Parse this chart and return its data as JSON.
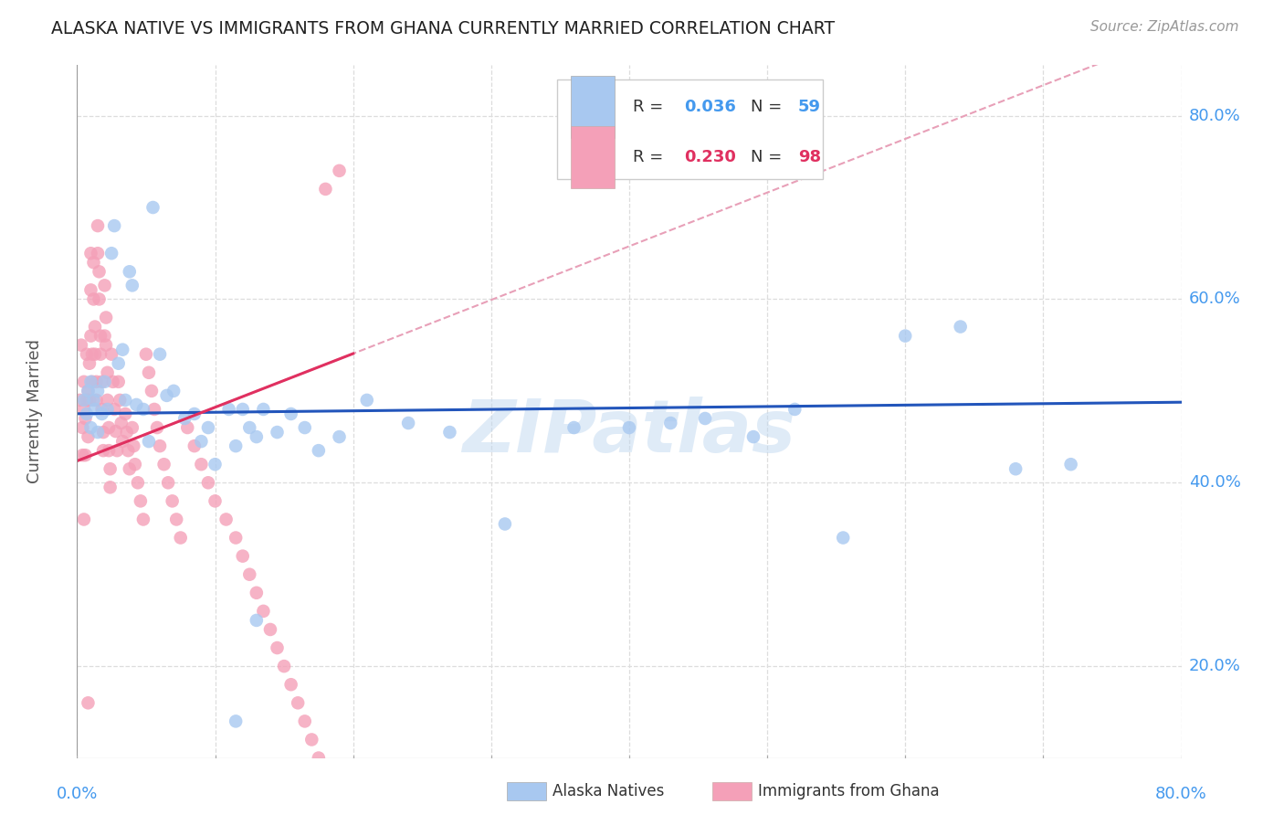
{
  "title": "ALASKA NATIVE VS IMMIGRANTS FROM GHANA CURRENTLY MARRIED CORRELATION CHART",
  "source": "Source: ZipAtlas.com",
  "ylabel": "Currently Married",
  "xlim": [
    0.0,
    0.8
  ],
  "ylim": [
    0.1,
    0.855
  ],
  "yticks": [
    0.2,
    0.4,
    0.6,
    0.8
  ],
  "ytick_labels": [
    "20.0%",
    "40.0%",
    "60.0%",
    "80.0%"
  ],
  "legend_blue_r": "0.036",
  "legend_blue_n": "59",
  "legend_pink_r": "0.230",
  "legend_pink_n": "98",
  "legend_label_blue": "Alaska Natives",
  "legend_label_pink": "Immigrants from Ghana",
  "color_blue": "#a8c8f0",
  "color_pink": "#f4a0b8",
  "color_blue_line": "#2255bb",
  "color_pink_line": "#e03060",
  "color_pink_dashed": "#e8a0b8",
  "color_rn_blue": "#4499ee",
  "color_rn_pink": "#e03060",
  "color_title": "#202020",
  "color_source": "#999999",
  "color_axis_labels": "#4499ee",
  "color_grid": "#dddddd",
  "color_ylabel": "#555555",
  "watermark": "ZIPatlas",
  "blue_x": [
    0.005,
    0.007,
    0.008,
    0.01,
    0.01,
    0.012,
    0.013,
    0.015,
    0.015,
    0.018,
    0.02,
    0.022,
    0.025,
    0.027,
    0.03,
    0.033,
    0.035,
    0.038,
    0.04,
    0.043,
    0.048,
    0.052,
    0.06,
    0.065,
    0.07,
    0.078,
    0.085,
    0.09,
    0.095,
    0.1,
    0.11,
    0.115,
    0.12,
    0.125,
    0.13,
    0.135,
    0.145,
    0.155,
    0.165,
    0.175,
    0.19,
    0.21,
    0.24,
    0.27,
    0.31,
    0.36,
    0.4,
    0.43,
    0.455,
    0.49,
    0.52,
    0.555,
    0.6,
    0.64,
    0.68,
    0.72,
    0.115,
    0.13,
    0.055
  ],
  "blue_y": [
    0.49,
    0.475,
    0.5,
    0.51,
    0.46,
    0.49,
    0.48,
    0.5,
    0.455,
    0.475,
    0.51,
    0.48,
    0.65,
    0.68,
    0.53,
    0.545,
    0.49,
    0.63,
    0.615,
    0.485,
    0.48,
    0.445,
    0.54,
    0.495,
    0.5,
    0.47,
    0.475,
    0.445,
    0.46,
    0.42,
    0.48,
    0.44,
    0.48,
    0.46,
    0.45,
    0.48,
    0.455,
    0.475,
    0.46,
    0.435,
    0.45,
    0.49,
    0.465,
    0.455,
    0.355,
    0.46,
    0.46,
    0.465,
    0.47,
    0.45,
    0.48,
    0.34,
    0.56,
    0.57,
    0.415,
    0.42,
    0.14,
    0.25,
    0.7
  ],
  "pink_x": [
    0.002,
    0.003,
    0.004,
    0.004,
    0.005,
    0.005,
    0.006,
    0.006,
    0.007,
    0.007,
    0.008,
    0.008,
    0.009,
    0.009,
    0.01,
    0.01,
    0.01,
    0.011,
    0.011,
    0.012,
    0.012,
    0.013,
    0.013,
    0.014,
    0.014,
    0.015,
    0.015,
    0.016,
    0.016,
    0.017,
    0.017,
    0.018,
    0.018,
    0.019,
    0.019,
    0.02,
    0.02,
    0.021,
    0.021,
    0.022,
    0.022,
    0.023,
    0.023,
    0.024,
    0.024,
    0.025,
    0.026,
    0.027,
    0.028,
    0.029,
    0.03,
    0.031,
    0.032,
    0.033,
    0.035,
    0.036,
    0.037,
    0.038,
    0.04,
    0.041,
    0.042,
    0.044,
    0.046,
    0.048,
    0.05,
    0.052,
    0.054,
    0.056,
    0.058,
    0.06,
    0.063,
    0.066,
    0.069,
    0.072,
    0.075,
    0.08,
    0.085,
    0.09,
    0.095,
    0.1,
    0.108,
    0.115,
    0.12,
    0.125,
    0.13,
    0.135,
    0.14,
    0.145,
    0.15,
    0.155,
    0.16,
    0.165,
    0.17,
    0.175,
    0.18,
    0.19,
    0.005,
    0.008
  ],
  "pink_y": [
    0.49,
    0.55,
    0.46,
    0.43,
    0.51,
    0.48,
    0.47,
    0.43,
    0.54,
    0.49,
    0.5,
    0.45,
    0.53,
    0.49,
    0.65,
    0.61,
    0.56,
    0.54,
    0.51,
    0.64,
    0.6,
    0.57,
    0.54,
    0.51,
    0.49,
    0.68,
    0.65,
    0.63,
    0.6,
    0.56,
    0.54,
    0.51,
    0.48,
    0.455,
    0.435,
    0.56,
    0.615,
    0.58,
    0.55,
    0.52,
    0.49,
    0.46,
    0.435,
    0.415,
    0.395,
    0.54,
    0.51,
    0.48,
    0.456,
    0.435,
    0.51,
    0.49,
    0.465,
    0.445,
    0.475,
    0.455,
    0.435,
    0.415,
    0.46,
    0.44,
    0.42,
    0.4,
    0.38,
    0.36,
    0.54,
    0.52,
    0.5,
    0.48,
    0.46,
    0.44,
    0.42,
    0.4,
    0.38,
    0.36,
    0.34,
    0.46,
    0.44,
    0.42,
    0.4,
    0.38,
    0.36,
    0.34,
    0.32,
    0.3,
    0.28,
    0.26,
    0.24,
    0.22,
    0.2,
    0.18,
    0.16,
    0.14,
    0.12,
    0.1,
    0.72,
    0.74,
    0.36,
    0.16
  ]
}
